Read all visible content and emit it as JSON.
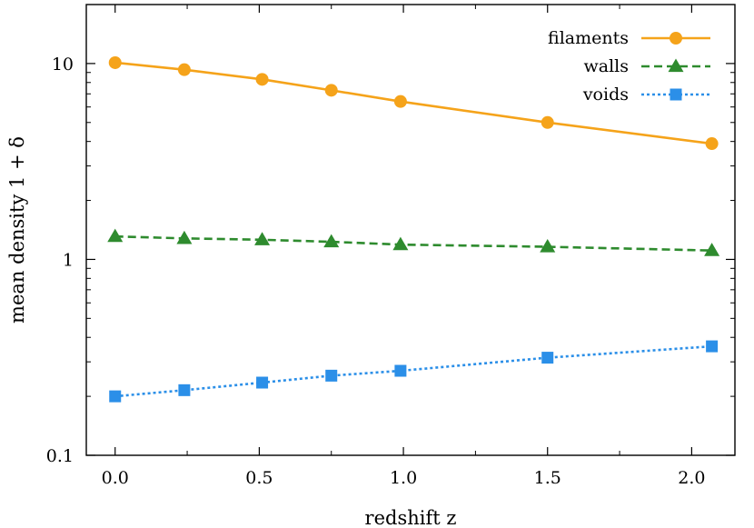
{
  "chart_data": {
    "type": "line",
    "xlabel": "redshift z",
    "ylabel": "mean  density  1 + δ",
    "xlim": [
      -0.1,
      2.15
    ],
    "ylim": [
      0.1,
      20
    ],
    "y_scale": "log",
    "x_ticks": [
      0.0,
      0.5,
      1.0,
      1.5,
      2.0
    ],
    "x_tick_labels": [
      "0.0",
      "0.5",
      "1.0",
      "1.5",
      "2.0"
    ],
    "y_ticks": [
      0.1,
      1,
      10
    ],
    "y_tick_labels": [
      "0.1",
      "1",
      "10"
    ],
    "legend_position": "top-right",
    "x": [
      0.0,
      0.24,
      0.51,
      0.75,
      0.99,
      1.5,
      2.07
    ],
    "series": [
      {
        "name": "filaments",
        "color": "#f5a31a",
        "line_style": "solid",
        "marker": "circle",
        "values": [
          10.1,
          9.3,
          8.3,
          7.3,
          6.4,
          5.0,
          3.9
        ]
      },
      {
        "name": "walls",
        "color": "#2e8b2e",
        "line_style": "dashed",
        "marker": "triangle",
        "values": [
          1.31,
          1.28,
          1.26,
          1.23,
          1.19,
          1.16,
          1.11
        ]
      },
      {
        "name": "voids",
        "color": "#2b8fe8",
        "line_style": "dotted",
        "marker": "square",
        "values": [
          0.2,
          0.215,
          0.235,
          0.255,
          0.27,
          0.315,
          0.36
        ]
      }
    ]
  }
}
